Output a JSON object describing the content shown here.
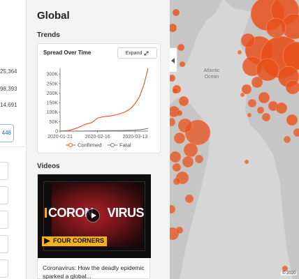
{
  "left_panel": {
    "stats": [
      "25,364",
      "98,393",
      "14,691"
    ],
    "button_label": "448"
  },
  "panel": {
    "title": "Global",
    "trends_label": "Trends",
    "videos_label": "Videos"
  },
  "chart_card": {
    "title": "Spread Over Time",
    "expand_label": "Expand"
  },
  "chart_data": {
    "type": "line",
    "title": "Spread Over Time",
    "xlabel": "",
    "ylabel": "",
    "ylim": [
      0,
      330000
    ],
    "y_ticks": [
      0,
      50000,
      100000,
      150000,
      200000,
      250000,
      300000
    ],
    "y_tick_labels": [
      "0",
      "50K",
      "100K",
      "150K",
      "200K",
      "250K",
      "300K"
    ],
    "x_tick_labels": [
      "2020-01-21",
      "2020-02-16",
      "2020-03-13"
    ],
    "x": [
      "2020-01-21",
      "2020-01-27",
      "2020-02-02",
      "2020-02-08",
      "2020-02-12",
      "2020-02-16",
      "2020-02-20",
      "2020-02-25",
      "2020-03-01",
      "2020-03-06",
      "2020-03-10",
      "2020-03-13",
      "2020-03-16",
      "2020-03-19",
      "2020-03-22"
    ],
    "series": [
      {
        "name": "Confirmed",
        "color": "#e8501b",
        "values": [
          600,
          3000,
          17000,
          37000,
          45000,
          69000,
          76000,
          80000,
          88000,
          101000,
          119000,
          145000,
          180000,
          242000,
          330000
        ]
      },
      {
        "name": "Fatal",
        "color": "#777777",
        "values": [
          20,
          80,
          360,
          800,
          1100,
          1660,
          2200,
          2700,
          3000,
          3400,
          4300,
          5400,
          7000,
          9900,
          14000
        ]
      }
    ],
    "legend_position": "bottom",
    "grid": false
  },
  "video": {
    "thumb_title_left": "CORON",
    "thumb_title_right": "VIRUS",
    "badge": "FOUR CORNERS",
    "caption": "Coronavirus: How the deadly epidemic sparked a global..."
  },
  "map": {
    "ocean_label": "Atlantic Ocean",
    "attribution": "© 2020",
    "bubble_color": "#e8501b"
  },
  "icons": {
    "expand": "expand-icon",
    "play": "play-icon",
    "collapse": "chevron-left-icon"
  }
}
